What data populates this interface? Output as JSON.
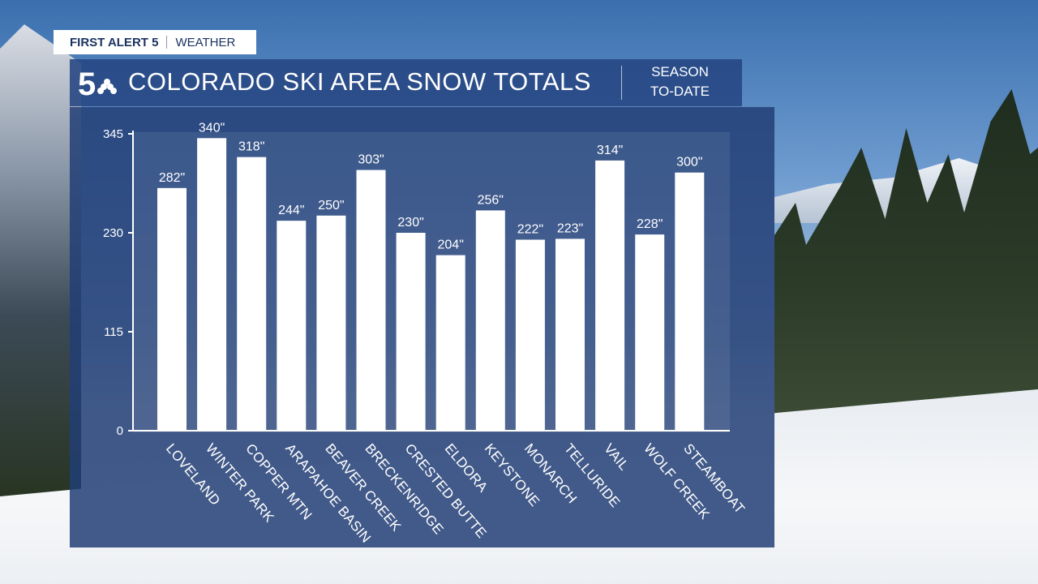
{
  "brand": {
    "label_bold": "FIRST ALERT 5",
    "label": "WEATHER"
  },
  "header": {
    "logo": "channel-5-peacock-logo",
    "title": "COLORADO SKI AREA SNOW TOTALS",
    "subtitle_line1": "SEASON",
    "subtitle_line2": "TO-DATE"
  },
  "colors": {
    "panel": "#223e76",
    "header": "#264682",
    "bar": "#ffffff",
    "brand_text": "#1a3361"
  },
  "chart_data": {
    "type": "bar",
    "title": "COLORADO SKI AREA SNOW TOTALS",
    "subtitle": "SEASON TO-DATE",
    "categories": [
      "LOVELAND",
      "WINTER PARK",
      "COPPER MTN",
      "ARAPAHOE BASIN",
      "BEAVER CREEK",
      "BRECKENRIDGE",
      "CRESTED BUTTE",
      "ELDORA",
      "KEYSTONE",
      "MONARCH",
      "TELLURIDE",
      "VAIL",
      "WOLF CREEK",
      "STEAMBOAT"
    ],
    "values": [
      282,
      340,
      318,
      244,
      250,
      303,
      230,
      204,
      256,
      222,
      223,
      314,
      228,
      300
    ],
    "value_labels": [
      "282\"",
      "340\"",
      "318\"",
      "244\"",
      "250\"",
      "303\"",
      "230\"",
      "204\"",
      "256\"",
      "222\"",
      "223\"",
      "314\"",
      "228\"",
      "300\""
    ],
    "yticks": [
      0,
      115,
      230,
      345
    ],
    "ylim": [
      0,
      345
    ],
    "grid": false,
    "legend": "none"
  }
}
